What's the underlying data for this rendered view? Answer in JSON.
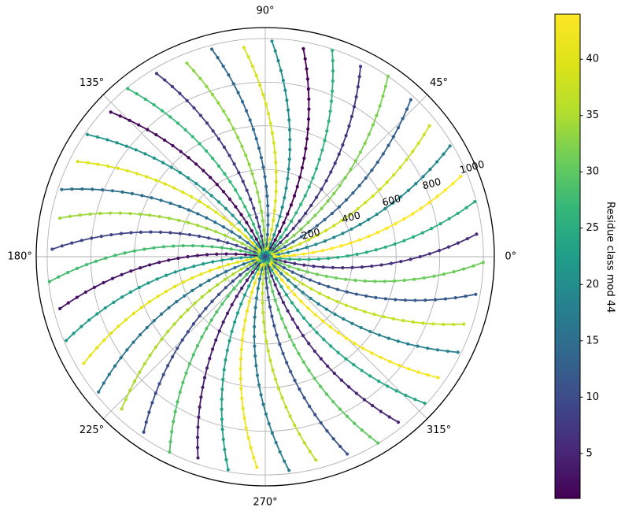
{
  "figure": {
    "background": "#ffffff",
    "text_color": "#000000"
  },
  "chart_data": {
    "type": "scatter",
    "projection": "polar",
    "description": "Integers n from 1 to 1000 plotted at angle n radians and radius n; points sharing the same residue class mod 44 are connected, forming 44 spiral arms",
    "point_rule": {
      "n_min": 1,
      "n_max": 1000,
      "angle": "n radians",
      "radius": "n",
      "color_value": "residue class of n mod 44 (1..44)"
    },
    "modulus": 44,
    "rmax": 1050,
    "grid": true,
    "grid_color": "#b0b0b0",
    "spine_color": "#000000",
    "angular_ticks": [
      {
        "deg": 0,
        "label": "0°"
      },
      {
        "deg": 45,
        "label": "45°"
      },
      {
        "deg": 90,
        "label": "90°"
      },
      {
        "deg": 135,
        "label": "135°"
      },
      {
        "deg": 180,
        "label": "180°"
      },
      {
        "deg": 225,
        "label": "225°"
      },
      {
        "deg": 270,
        "label": "270°"
      },
      {
        "deg": 315,
        "label": "315°"
      }
    ],
    "radial_ticks": [
      {
        "value": 200,
        "label": "200"
      },
      {
        "value": 400,
        "label": "400"
      },
      {
        "value": 600,
        "label": "600"
      },
      {
        "value": 800,
        "label": "800"
      },
      {
        "value": 1000,
        "label": "1000"
      }
    ],
    "rlabel_position_deg": 22.5,
    "rlabel_rotation_deg": -15,
    "colormap": {
      "name": "viridis",
      "stops": [
        "#440154",
        "#482878",
        "#3e4a89",
        "#31688e",
        "#26828e",
        "#1f9e89",
        "#35b779",
        "#6dcd59",
        "#b4de2c",
        "#dde318",
        "#fde725"
      ]
    },
    "series": [
      {
        "residue": 1,
        "n_first": 1,
        "n_last": 969
      },
      {
        "residue": 2,
        "n_first": 2,
        "n_last": 970
      },
      {
        "residue": 3,
        "n_first": 3,
        "n_last": 971
      },
      {
        "residue": 4,
        "n_first": 4,
        "n_last": 972
      },
      {
        "residue": 5,
        "n_first": 5,
        "n_last": 973
      },
      {
        "residue": 6,
        "n_first": 6,
        "n_last": 974
      },
      {
        "residue": 7,
        "n_first": 7,
        "n_last": 975
      },
      {
        "residue": 8,
        "n_first": 8,
        "n_last": 976
      },
      {
        "residue": 9,
        "n_first": 9,
        "n_last": 977
      },
      {
        "residue": 10,
        "n_first": 10,
        "n_last": 978
      },
      {
        "residue": 11,
        "n_first": 11,
        "n_last": 979
      },
      {
        "residue": 12,
        "n_first": 12,
        "n_last": 980
      },
      {
        "residue": 13,
        "n_first": 13,
        "n_last": 981
      },
      {
        "residue": 14,
        "n_first": 14,
        "n_last": 982
      },
      {
        "residue": 15,
        "n_first": 15,
        "n_last": 983
      },
      {
        "residue": 16,
        "n_first": 16,
        "n_last": 984
      },
      {
        "residue": 17,
        "n_first": 17,
        "n_last": 985
      },
      {
        "residue": 18,
        "n_first": 18,
        "n_last": 986
      },
      {
        "residue": 19,
        "n_first": 19,
        "n_last": 987
      },
      {
        "residue": 20,
        "n_first": 20,
        "n_last": 988
      },
      {
        "residue": 21,
        "n_first": 21,
        "n_last": 989
      },
      {
        "residue": 22,
        "n_first": 22,
        "n_last": 990
      },
      {
        "residue": 23,
        "n_first": 23,
        "n_last": 991
      },
      {
        "residue": 24,
        "n_first": 24,
        "n_last": 992
      },
      {
        "residue": 25,
        "n_first": 25,
        "n_last": 993
      },
      {
        "residue": 26,
        "n_first": 26,
        "n_last": 994
      },
      {
        "residue": 27,
        "n_first": 27,
        "n_last": 995
      },
      {
        "residue": 28,
        "n_first": 28,
        "n_last": 996
      },
      {
        "residue": 29,
        "n_first": 29,
        "n_last": 997
      },
      {
        "residue": 30,
        "n_first": 30,
        "n_last": 998
      },
      {
        "residue": 31,
        "n_first": 31,
        "n_last": 999
      },
      {
        "residue": 32,
        "n_first": 32,
        "n_last": 1000
      },
      {
        "residue": 33,
        "n_first": 33,
        "n_last": 957
      },
      {
        "residue": 34,
        "n_first": 34,
        "n_last": 958
      },
      {
        "residue": 35,
        "n_first": 35,
        "n_last": 959
      },
      {
        "residue": 36,
        "n_first": 36,
        "n_last": 960
      },
      {
        "residue": 37,
        "n_first": 37,
        "n_last": 961
      },
      {
        "residue": 38,
        "n_first": 38,
        "n_last": 962
      },
      {
        "residue": 39,
        "n_first": 39,
        "n_last": 963
      },
      {
        "residue": 40,
        "n_first": 40,
        "n_last": 964
      },
      {
        "residue": 41,
        "n_first": 41,
        "n_last": 965
      },
      {
        "residue": 42,
        "n_first": 42,
        "n_last": 966
      },
      {
        "residue": 43,
        "n_first": 43,
        "n_last": 967
      },
      {
        "residue": 44,
        "n_first": 44,
        "n_last": 968
      }
    ]
  },
  "colorbar": {
    "label": "Residue class mod 44",
    "vmin": 1,
    "vmax": 44,
    "ticks": [
      5,
      10,
      15,
      20,
      25,
      30,
      35,
      40
    ]
  }
}
